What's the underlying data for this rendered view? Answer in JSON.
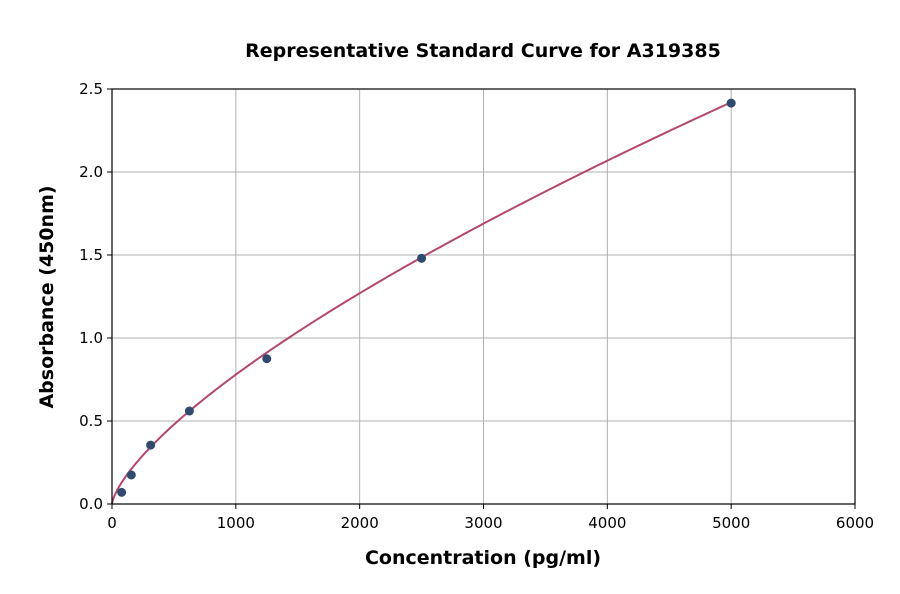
{
  "chart_data": {
    "type": "scatter",
    "title": "Representative Standard Curve for A319385",
    "xlabel": "Concentration (pg/ml)",
    "ylabel": "Absorbance (450nm)",
    "xlim": [
      0,
      6000
    ],
    "ylim": [
      0,
      2.5
    ],
    "xticks": [
      0,
      1000,
      2000,
      3000,
      4000,
      5000,
      6000
    ],
    "yticks": [
      "0.0",
      "0.5",
      "1.0",
      "1.5",
      "2.0",
      "2.5"
    ],
    "grid": true,
    "points": {
      "x": [
        78,
        156,
        312,
        625,
        1250,
        2500,
        5000
      ],
      "y": [
        0.07,
        0.175,
        0.355,
        0.56,
        0.875,
        1.48,
        2.415
      ]
    },
    "fit_curve": {
      "type": "power",
      "description_visible": false,
      "exponent": 0.704,
      "y_at_5000": 2.42
    },
    "colors": {
      "points": "#2e4a6e",
      "curve": "#b5466e",
      "grid": "#b0b0b0"
    }
  }
}
